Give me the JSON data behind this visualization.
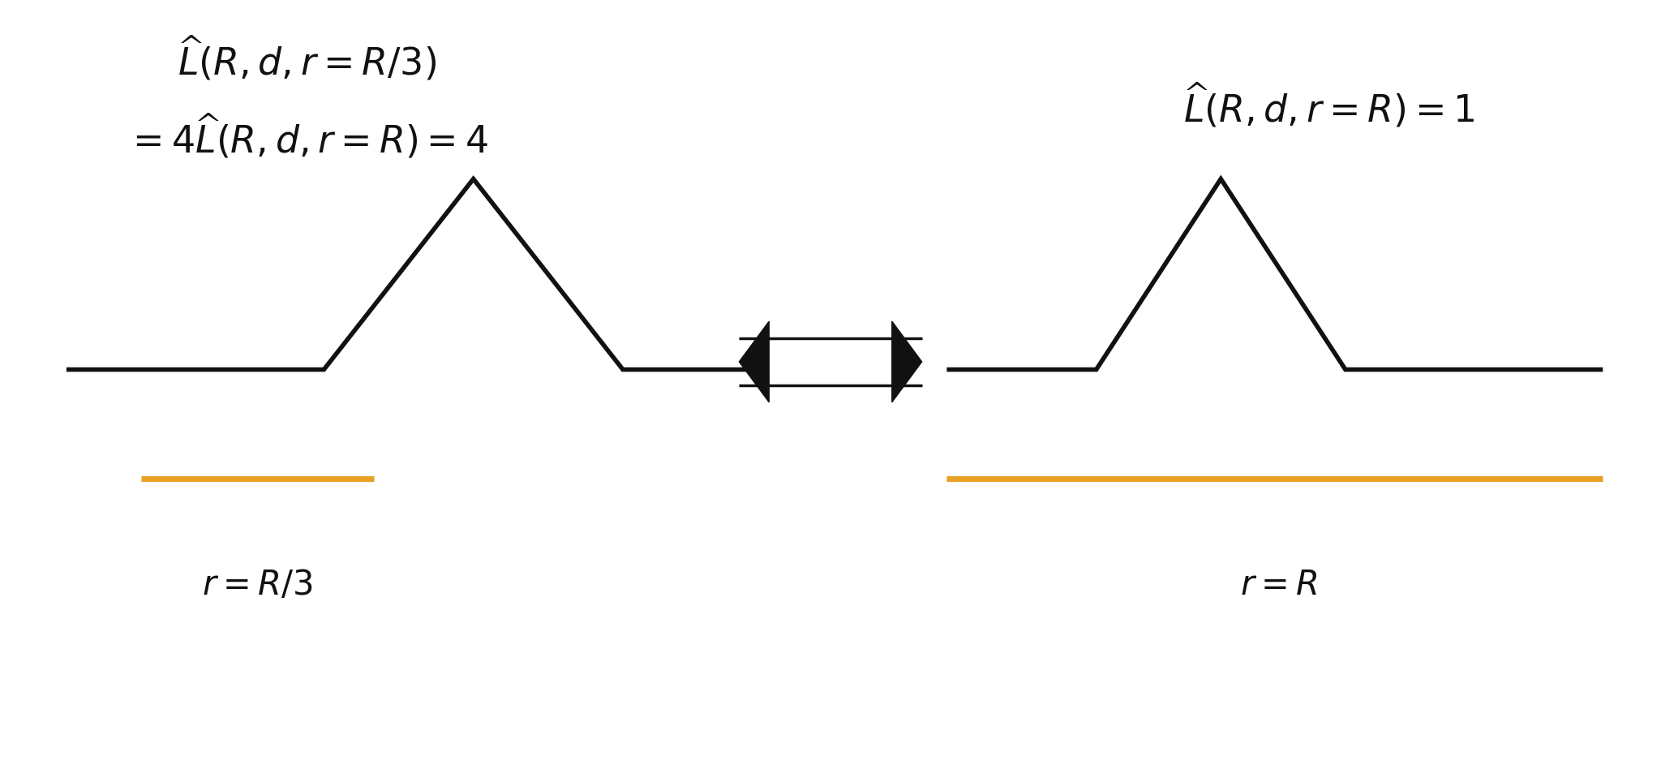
{
  "bg_color": "#ffffff",
  "line_color": "#111111",
  "orange_color": "#E8A020",
  "fig_width": 20.48,
  "fig_height": 9.59,
  "left_formula_line1": "$\\widehat{L}(R, d, r = R/3)$",
  "left_formula_line2": "$= 4\\widehat{L}(R, d, r = R) = 4$",
  "right_formula": "$\\widehat{L}(R, d, r = R) = 1$",
  "left_label": "$r = R/3$",
  "right_label": "$r = R$",
  "lw_shape": 4.0,
  "lw_orange": 5.0,
  "text_fontsize": 33,
  "label_fontsize": 30
}
